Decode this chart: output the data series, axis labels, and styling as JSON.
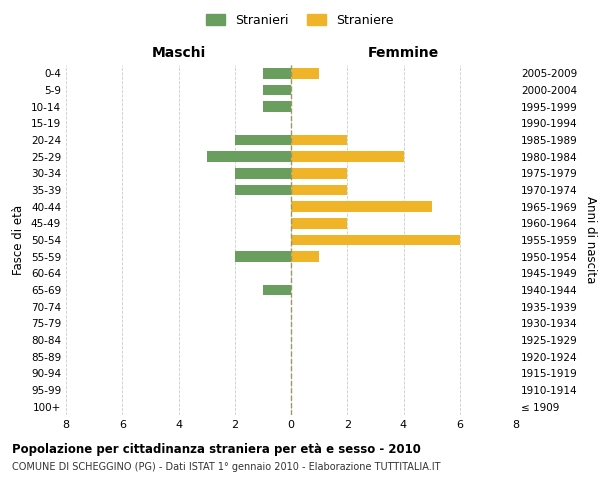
{
  "age_groups": [
    "100+",
    "95-99",
    "90-94",
    "85-89",
    "80-84",
    "75-79",
    "70-74",
    "65-69",
    "60-64",
    "55-59",
    "50-54",
    "45-49",
    "40-44",
    "35-39",
    "30-34",
    "25-29",
    "20-24",
    "15-19",
    "10-14",
    "5-9",
    "0-4"
  ],
  "birth_years": [
    "≤ 1909",
    "1910-1914",
    "1915-1919",
    "1920-1924",
    "1925-1929",
    "1930-1934",
    "1935-1939",
    "1940-1944",
    "1945-1949",
    "1950-1954",
    "1955-1959",
    "1960-1964",
    "1965-1969",
    "1970-1974",
    "1975-1979",
    "1980-1984",
    "1985-1989",
    "1990-1994",
    "1995-1999",
    "2000-2004",
    "2005-2009"
  ],
  "maschi": [
    0,
    0,
    0,
    0,
    0,
    0,
    0,
    1,
    0,
    2,
    0,
    0,
    0,
    2,
    2,
    3,
    2,
    0,
    1,
    1,
    1
  ],
  "femmine": [
    0,
    0,
    0,
    0,
    0,
    0,
    0,
    0,
    0,
    1,
    6,
    2,
    5,
    2,
    2,
    4,
    2,
    0,
    0,
    0,
    1
  ],
  "color_maschi": "#6a9e5e",
  "color_femmine": "#f0b429",
  "title_main": "Popolazione per cittadinanza straniera per età e sesso - 2010",
  "title_sub": "COMUNE DI SCHEGGINO (PG) - Dati ISTAT 1° gennaio 2010 - Elaborazione TUTTITALIA.IT",
  "label_maschi": "Stranieri",
  "label_femmine": "Straniere",
  "xlabel_left": "Maschi",
  "xlabel_right": "Femmine",
  "ylabel_left": "Fasce di età",
  "ylabel_right": "Anni di nascita",
  "xlim": 8,
  "background_color": "#ffffff",
  "grid_color": "#cccccc"
}
